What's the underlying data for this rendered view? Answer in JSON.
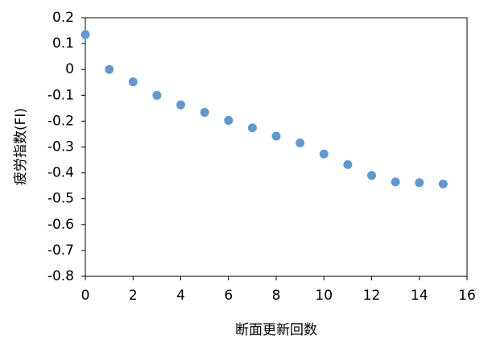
{
  "chart_data": {
    "type": "scatter",
    "x_label": "断面更新回数",
    "y_label": "疲労指数(FI)",
    "x": [
      0,
      1,
      2,
      3,
      4,
      5,
      6,
      7,
      8,
      9,
      10,
      11,
      12,
      13,
      14,
      15
    ],
    "series": [
      {
        "color": "#5b9bd5",
        "values": [
          0.135,
          0.0,
          -0.048,
          -0.1,
          -0.137,
          -0.166,
          -0.197,
          -0.226,
          -0.258,
          -0.284,
          -0.327,
          -0.368,
          -0.41,
          -0.435,
          -0.438,
          -0.443
        ]
      }
    ],
    "xlim": [
      0,
      16
    ],
    "xticks": [
      0,
      2,
      4,
      6,
      8,
      10,
      12,
      14,
      16
    ],
    "ylim": [
      -0.8,
      0.2
    ],
    "yticks": [
      -0.8,
      -0.7,
      -0.6,
      -0.5,
      -0.4,
      -0.3,
      -0.2,
      -0.1,
      0,
      0.1,
      0.2
    ],
    "grid": false
  }
}
